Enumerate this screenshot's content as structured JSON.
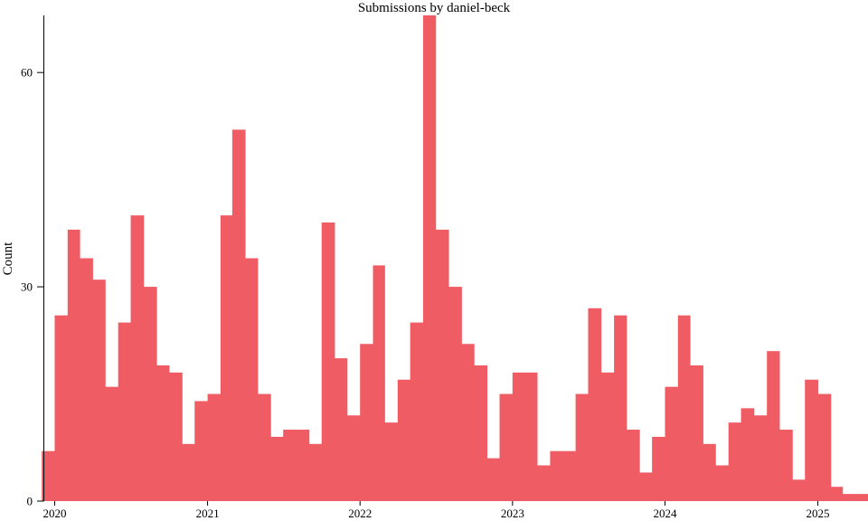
{
  "chart_data": {
    "type": "bar",
    "title": "Submissions by daniel-beck",
    "xlabel": "",
    "ylabel": "Count",
    "color": "#f05c64",
    "ylim": [
      0,
      68
    ],
    "xlim": [
      "2019-12-05",
      "2025-05-01"
    ],
    "y_ticks": [
      0,
      30,
      60
    ],
    "x_ticks": [
      "2020",
      "2021",
      "2022",
      "2023",
      "2024",
      "2025"
    ],
    "grid": false,
    "legend": "none",
    "months": [
      "2019-12",
      "2020-01",
      "2020-02",
      "2020-03",
      "2020-04",
      "2020-05",
      "2020-06",
      "2020-07",
      "2020-08",
      "2020-09",
      "2020-10",
      "2020-11",
      "2020-12",
      "2021-01",
      "2021-02",
      "2021-03",
      "2021-04",
      "2021-05",
      "2021-06",
      "2021-07",
      "2021-08",
      "2021-09",
      "2021-10",
      "2021-11",
      "2021-12",
      "2022-01",
      "2022-02",
      "2022-03",
      "2022-04",
      "2022-05",
      "2022-06",
      "2022-07",
      "2022-08",
      "2022-09",
      "2022-10",
      "2022-11",
      "2022-12",
      "2023-01",
      "2023-02",
      "2023-03",
      "2023-04",
      "2023-05",
      "2023-06",
      "2023-07",
      "2023-08",
      "2023-09",
      "2023-10",
      "2023-11",
      "2023-12",
      "2024-01",
      "2024-02",
      "2024-03",
      "2024-04",
      "2024-05",
      "2024-06",
      "2024-07",
      "2024-08",
      "2024-09",
      "2024-10",
      "2024-11",
      "2024-12",
      "2025-01",
      "2025-02",
      "2025-03",
      "2025-04"
    ],
    "values": [
      7,
      26,
      38,
      34,
      31,
      16,
      25,
      40,
      30,
      19,
      18,
      8,
      14,
      15,
      40,
      52,
      34,
      15,
      9,
      10,
      10,
      8,
      39,
      20,
      12,
      22,
      33,
      11,
      17,
      25,
      68,
      38,
      30,
      22,
      19,
      6,
      15,
      18,
      18,
      5,
      7,
      7,
      15,
      27,
      18,
      26,
      10,
      4,
      9,
      16,
      26,
      19,
      8,
      5,
      11,
      13,
      12,
      21,
      10,
      3,
      17,
      15,
      2,
      1,
      1
    ]
  }
}
